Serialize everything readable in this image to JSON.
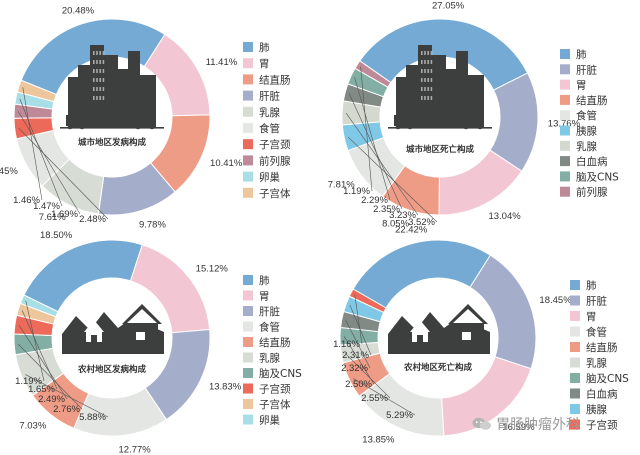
{
  "chart_data": [
    {
      "type": "donut",
      "title": "城市地区发病构成",
      "categories": [
        "肺",
        "胃",
        "结直肠",
        "肝脏",
        "乳腺",
        "食管",
        "子宫颈",
        "前列腺",
        "卵巢",
        "子宫体"
      ],
      "values": [
        20.48,
        11.41,
        10.41,
        9.78,
        7.61,
        6.45,
        2.48,
        1.69,
        1.47,
        1.46
      ],
      "labels": [
        "20.48%",
        "11.41%",
        "10.41%",
        "9.78%",
        "7.61%",
        "6.45%",
        "2.48%",
        "1.69%",
        "1.47%",
        "1.46%"
      ],
      "colors": [
        "#74aad4",
        "#f3c6d3",
        "#ef9c86",
        "#a4aecb",
        "#d7ddd5",
        "#e3e6e2",
        "#ed6a5a",
        "#bf8a98",
        "#a8dee6",
        "#edc79b"
      ],
      "icon": "city"
    },
    {
      "type": "donut",
      "title": "城市地区死亡构成",
      "categories": [
        "肺",
        "肝脏",
        "胃",
        "结直肠",
        "食管",
        "胰腺",
        "乳腺",
        "白血病",
        "脑及CNS",
        "前列腺"
      ],
      "values": [
        27.05,
        13.76,
        13.04,
        8.05,
        7.81,
        3.52,
        3.23,
        2.35,
        2.29,
        1.19
      ],
      "labels": [
        "27.05%",
        "13.76%",
        "13.04%",
        "8.05%",
        "7.81%",
        "3.52%",
        "3.23%",
        "2.35%",
        "2.29%",
        "1.19%"
      ],
      "colors": [
        "#74aad4",
        "#a4aecb",
        "#f3c6d3",
        "#ef9c86",
        "#e3e6e2",
        "#7fc9e6",
        "#d3d9cf",
        "#828a86",
        "#82aea4",
        "#bf8a98"
      ],
      "icon": "city"
    },
    {
      "type": "donut",
      "title": "农村地区发病构成",
      "categories": [
        "肺",
        "胃",
        "肝脏",
        "食管",
        "结直肠",
        "乳腺",
        "脑及CNS",
        "子宫颈",
        "子宫体",
        "卵巢"
      ],
      "values": [
        18.5,
        15.12,
        13.83,
        12.77,
        7.03,
        5.88,
        2.76,
        2.49,
        1.65,
        1.19
      ],
      "labels": [
        "18.50%",
        "15.12%",
        "13.83%",
        "12.77%",
        "7.03%",
        "5.88%",
        "2.76%",
        "2.49%",
        "1.65%",
        "1.19%"
      ],
      "colors": [
        "#74aad4",
        "#f3c6d3",
        "#a4aecb",
        "#e3e6e2",
        "#ef9c86",
        "#d7ddd5",
        "#82aea4",
        "#ed6a5a",
        "#edc79b",
        "#a8dee6"
      ],
      "icon": "rural"
    },
    {
      "type": "donut",
      "title": "农村地区死亡构成",
      "categories": [
        "肺",
        "肝脏",
        "胃",
        "食管",
        "结直肠",
        "乳腺",
        "脑及CNS",
        "白血病",
        "胰腺",
        "子宫颈"
      ],
      "values": [
        22.42,
        18.45,
        16.59,
        13.85,
        5.29,
        2.55,
        2.5,
        2.32,
        2.31,
        1.16
      ],
      "labels": [
        "22.42%",
        "18.45%",
        "16.59%",
        "13.85%",
        "5.29%",
        "2.55%",
        "2.50%",
        "2.32%",
        "2.31%",
        "1.16%"
      ],
      "colors": [
        "#74aad4",
        "#a4aecb",
        "#f3c6d3",
        "#e3e6e2",
        "#ef9c86",
        "#d7ddd5",
        "#82aea4",
        "#828a86",
        "#7fc9e6",
        "#ed6a5a"
      ],
      "icon": "rural"
    }
  ],
  "watermark": "胃肠肿瘤外科"
}
